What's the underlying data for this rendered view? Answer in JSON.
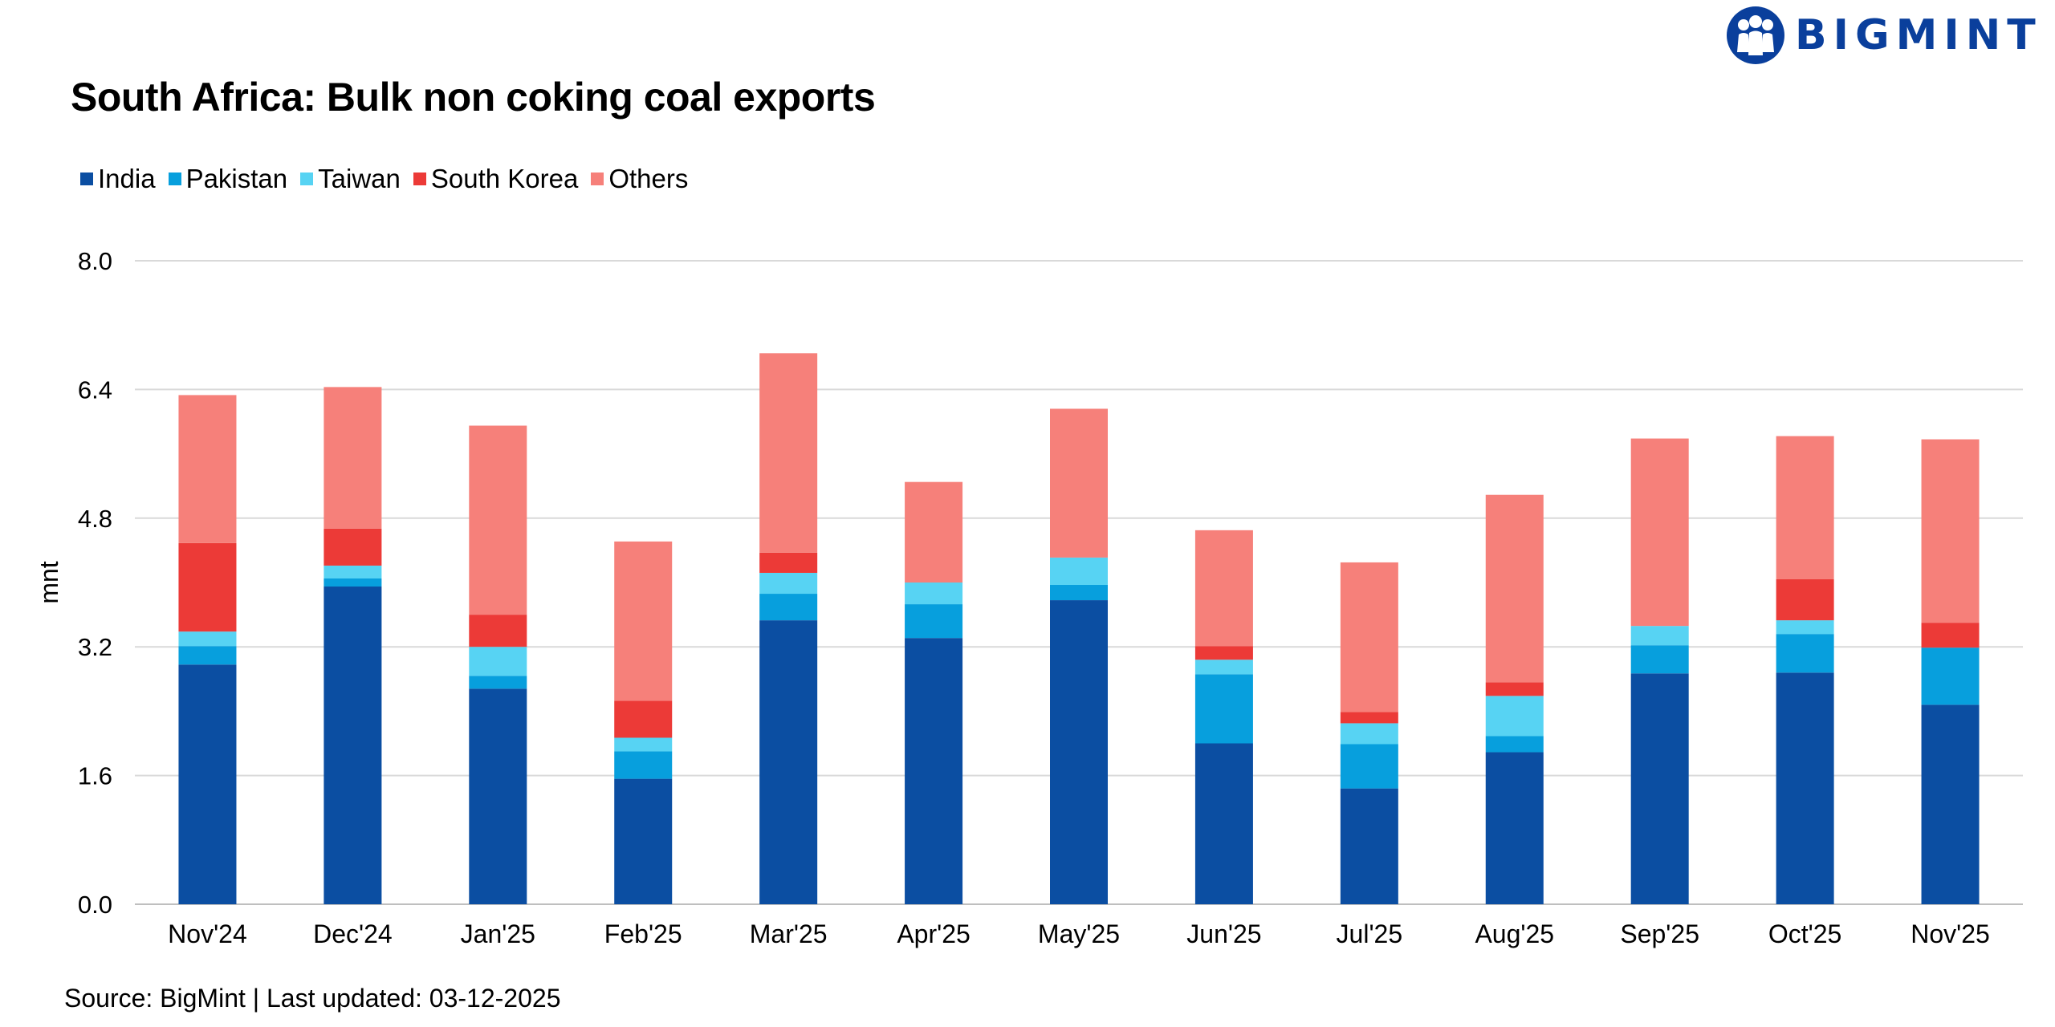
{
  "brand": {
    "name": "BIGMINT",
    "logo_icon": "bigmint-people-logo",
    "color": "#0a3f9c"
  },
  "source_note": "Source: BigMint | Last updated: 03-12-2025",
  "chart_data": {
    "type": "bar",
    "stacked": true,
    "title": "South Africa: Bulk non coking coal exports",
    "xlabel": "",
    "ylabel": "mnt",
    "ylim": [
      0,
      8
    ],
    "yticks": [
      "0.0",
      "1.6",
      "3.2",
      "4.8",
      "6.4",
      "8.0"
    ],
    "grid": true,
    "legend_position": "top-left",
    "categories": [
      "Nov'24",
      "Dec'24",
      "Jan'25",
      "Feb'25",
      "Mar'25",
      "Apr'25",
      "May'25",
      "Jun'25",
      "Jul'25",
      "Aug'25",
      "Sep'25",
      "Oct'25",
      "Nov'25"
    ],
    "series": [
      {
        "name": "India",
        "color": "#0b4ea2",
        "values": [
          2.98,
          3.95,
          2.68,
          1.56,
          3.53,
          3.31,
          3.78,
          2.0,
          1.44,
          1.89,
          2.87,
          2.88,
          2.48
        ]
      },
      {
        "name": "Pakistan",
        "color": "#079fdd",
        "values": [
          0.23,
          0.1,
          0.16,
          0.34,
          0.33,
          0.42,
          0.19,
          0.86,
          0.55,
          0.2,
          0.35,
          0.48,
          0.71
        ]
      },
      {
        "name": "Taiwan",
        "color": "#57d3f3",
        "values": [
          0.18,
          0.16,
          0.36,
          0.17,
          0.26,
          0.27,
          0.34,
          0.18,
          0.26,
          0.5,
          0.24,
          0.17,
          0.0
        ]
      },
      {
        "name": "South Korea",
        "color": "#ec3a37",
        "values": [
          1.1,
          0.46,
          0.4,
          0.46,
          0.25,
          0.0,
          0.0,
          0.17,
          0.14,
          0.17,
          0.0,
          0.51,
          0.31
        ]
      },
      {
        "name": "Others",
        "color": "#f6807a",
        "values": [
          1.84,
          1.76,
          2.35,
          1.98,
          2.48,
          1.25,
          1.85,
          1.44,
          1.86,
          2.33,
          2.33,
          1.78,
          2.28
        ]
      }
    ]
  }
}
